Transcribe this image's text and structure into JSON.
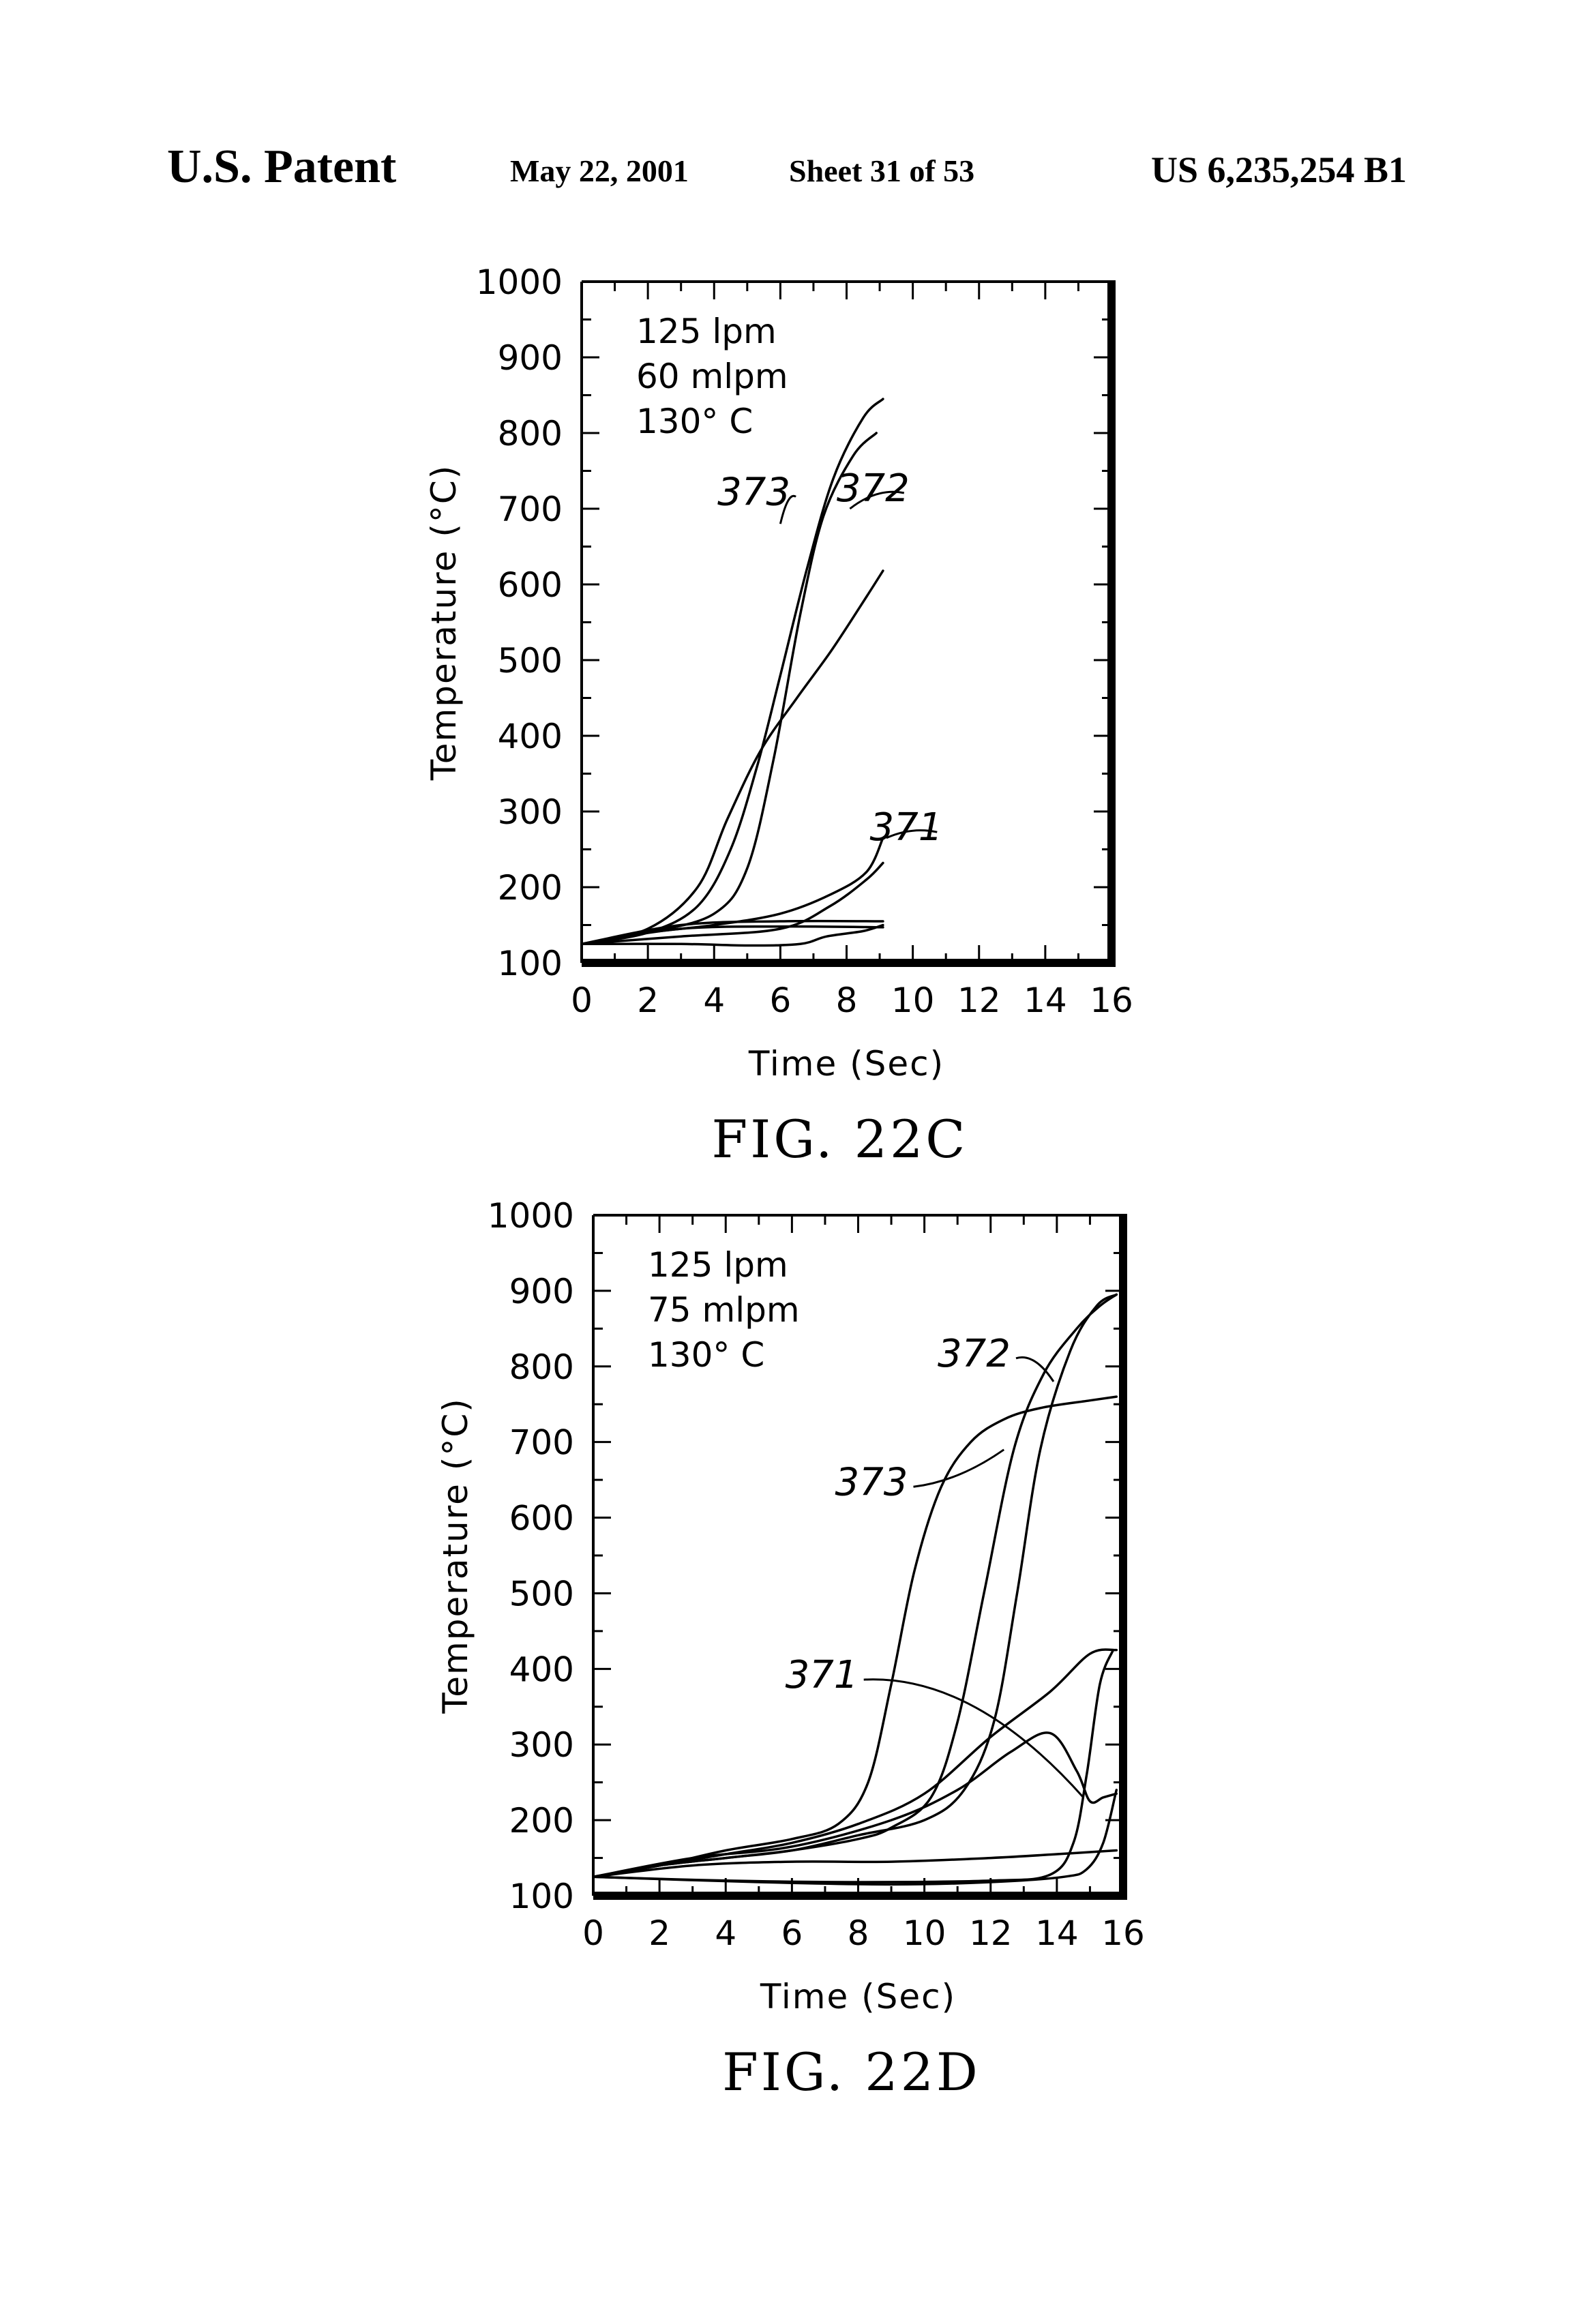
{
  "header": {
    "left": "U.S. Patent",
    "date": "May 22, 2001",
    "sheet": "Sheet 31 of 53",
    "number": "US 6,235,254 B1"
  },
  "chart_data": [
    {
      "type": "line",
      "figure_label": "FIG. 22C",
      "xlabel": "Time (Sec)",
      "ylabel": "Temperature (°C)",
      "xlim": [
        0,
        16
      ],
      "ylim": [
        100,
        1000
      ],
      "xticks": [
        0,
        2,
        4,
        6,
        8,
        10,
        12,
        14,
        16
      ],
      "yticks": [
        100,
        200,
        300,
        400,
        500,
        600,
        700,
        800,
        900,
        1000
      ],
      "annotations": [
        "125 lpm",
        "60 mlpm",
        "130° C"
      ],
      "reference_labels": [
        {
          "text": "373",
          "x": 4.1,
          "y": 705,
          "tx": 6.0,
          "ty": 680
        },
        {
          "text": "372",
          "x": 9.9,
          "y": 710,
          "tx": 8.1,
          "ty": 700
        },
        {
          "text": "371",
          "x": 10.9,
          "y": 262,
          "tx": 9.2,
          "ty": 265
        }
      ],
      "series": [
        {
          "values": [
            [
              0,
              125
            ],
            [
              2,
              140
            ],
            [
              3.5,
              175
            ],
            [
              4.5,
              250
            ],
            [
              5.3,
              360
            ],
            [
              6,
              480
            ],
            [
              6.8,
              620
            ],
            [
              7.6,
              740
            ],
            [
              8.5,
              820
            ],
            [
              9.1,
              845
            ]
          ]
        },
        {
          "values": [
            [
              0,
              125
            ],
            [
              2,
              140
            ],
            [
              4,
              165
            ],
            [
              5,
              225
            ],
            [
              5.8,
              370
            ],
            [
              6.6,
              560
            ],
            [
              7.3,
              690
            ],
            [
              8.2,
              770
            ],
            [
              8.9,
              800
            ]
          ]
        },
        {
          "values": [
            [
              0,
              125
            ],
            [
              2,
              145
            ],
            [
              3.5,
              200
            ],
            [
              4.4,
              290
            ],
            [
              5.4,
              380
            ],
            [
              6.5,
              450
            ],
            [
              7.5,
              510
            ],
            [
              8.4,
              570
            ],
            [
              9.1,
              618
            ]
          ]
        },
        {
          "values": [
            [
              0,
              125
            ],
            [
              2,
              140
            ],
            [
              4,
              150
            ],
            [
              6,
              165
            ],
            [
              7.5,
              190
            ],
            [
              8.6,
              220
            ],
            [
              9.1,
              265
            ]
          ]
        },
        {
          "values": [
            [
              0,
              125
            ],
            [
              3,
              135
            ],
            [
              6,
              145
            ],
            [
              7.5,
              175
            ],
            [
              8.6,
              210
            ],
            [
              9.1,
              232
            ]
          ]
        },
        {
          "values": [
            [
              0,
              125
            ],
            [
              3,
              150
            ],
            [
              6,
              155
            ],
            [
              9.1,
              155
            ]
          ]
        },
        {
          "values": [
            [
              0,
              125
            ],
            [
              3,
              145
            ],
            [
              6,
              148
            ],
            [
              9.1,
              147
            ]
          ]
        },
        {
          "values": [
            [
              0,
              125
            ],
            [
              3,
              125
            ],
            [
              5,
              123
            ],
            [
              6.6,
              125
            ],
            [
              7.4,
              135
            ],
            [
              8.5,
              142
            ],
            [
              9.1,
              150
            ]
          ]
        }
      ]
    },
    {
      "type": "line",
      "figure_label": "FIG. 22D",
      "xlabel": "Time (Sec)",
      "ylabel": "Temperature (°C)",
      "xlim": [
        0,
        16
      ],
      "ylim": [
        100,
        1000
      ],
      "xticks": [
        0,
        2,
        4,
        6,
        8,
        10,
        12,
        14,
        16
      ],
      "yticks": [
        100,
        200,
        300,
        400,
        500,
        600,
        700,
        800,
        900,
        1000
      ],
      "annotations": [
        "125 lpm",
        "75 mlpm",
        "130° C"
      ],
      "reference_labels": [
        {
          "text": "372",
          "x": 10.4,
          "y": 800,
          "tx": 13.9,
          "ty": 780
        },
        {
          "text": "373",
          "x": 7.3,
          "y": 630,
          "tx": 12.4,
          "ty": 690
        },
        {
          "text": "371",
          "x": 5.8,
          "y": 375,
          "tx": 14.8,
          "ty": 230
        }
      ],
      "series": [
        {
          "values": [
            [
              0,
              125
            ],
            [
              2,
              140
            ],
            [
              4,
              160
            ],
            [
              6,
              175
            ],
            [
              7.4,
              195
            ],
            [
              8.3,
              250
            ],
            [
              9,
              380
            ],
            [
              9.7,
              530
            ],
            [
              10.5,
              640
            ],
            [
              11.4,
              700
            ],
            [
              12.4,
              730
            ],
            [
              13.5,
              745
            ],
            [
              15,
              755
            ],
            [
              15.8,
              760
            ]
          ]
        },
        {
          "values": [
            [
              0,
              125
            ],
            [
              2,
              140
            ],
            [
              4,
              150
            ],
            [
              6,
              160
            ],
            [
              8,
              175
            ],
            [
              9,
              190
            ],
            [
              10.2,
              230
            ],
            [
              11,
              330
            ],
            [
              11.8,
              500
            ],
            [
              12.7,
              690
            ],
            [
              13.6,
              790
            ],
            [
              14.6,
              850
            ],
            [
              15.3,
              880
            ],
            [
              15.8,
              895
            ]
          ]
        },
        {
          "values": [
            [
              0,
              125
            ],
            [
              2,
              140
            ],
            [
              4,
              150
            ],
            [
              6,
              160
            ],
            [
              8,
              180
            ],
            [
              10,
              200
            ],
            [
              11.2,
              240
            ],
            [
              12.1,
              330
            ],
            [
              12.8,
              500
            ],
            [
              13.5,
              690
            ],
            [
              14.4,
              820
            ],
            [
              15.2,
              880
            ],
            [
              15.8,
              895
            ]
          ]
        },
        {
          "values": [
            [
              0,
              125
            ],
            [
              2,
              140
            ],
            [
              4,
              155
            ],
            [
              6,
              170
            ],
            [
              8,
              195
            ],
            [
              10,
              235
            ],
            [
              12,
              310
            ],
            [
              13.8,
              370
            ],
            [
              15,
              420
            ],
            [
              15.8,
              425
            ]
          ]
        },
        {
          "values": [
            [
              0,
              125
            ],
            [
              3,
              150
            ],
            [
              6,
              165
            ],
            [
              9,
              200
            ],
            [
              11,
              240
            ],
            [
              12.6,
              290
            ],
            [
              13.8,
              315
            ],
            [
              14.6,
              265
            ],
            [
              15,
              225
            ],
            [
              15.4,
              230
            ],
            [
              15.8,
              235
            ]
          ]
        },
        {
          "values": [
            [
              0,
              125
            ],
            [
              3,
              140
            ],
            [
              6,
              145
            ],
            [
              9,
              145
            ],
            [
              12,
              150
            ],
            [
              14,
              155
            ],
            [
              15.8,
              160
            ]
          ]
        },
        {
          "values": [
            [
              0,
              125
            ],
            [
              4,
              120
            ],
            [
              8,
              118
            ],
            [
              12,
              120
            ],
            [
              13.8,
              128
            ],
            [
              14.5,
              170
            ],
            [
              14.9,
              260
            ],
            [
              15.3,
              380
            ],
            [
              15.7,
              425
            ]
          ]
        },
        {
          "values": [
            [
              0,
              125
            ],
            [
              5,
              118
            ],
            [
              9,
              115
            ],
            [
              12,
              118
            ],
            [
              14.2,
              125
            ],
            [
              14.9,
              135
            ],
            [
              15.4,
              170
            ],
            [
              15.8,
              240
            ]
          ]
        }
      ]
    }
  ]
}
